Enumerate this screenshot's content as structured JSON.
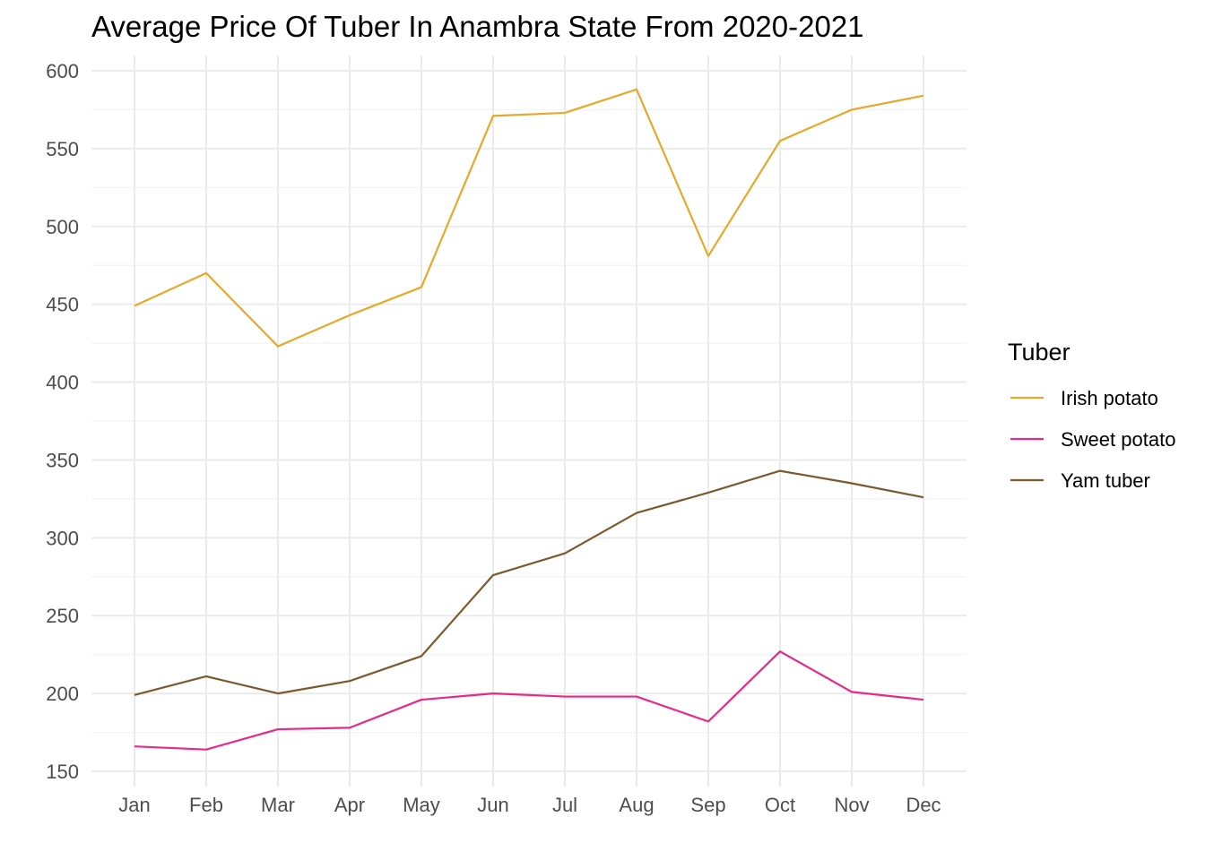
{
  "chart_data": {
    "type": "line",
    "title": "Average Price Of Tuber In Anambra State From 2020-2021",
    "xlabel": "",
    "ylabel": "",
    "categories": [
      "Jan",
      "Feb",
      "Mar",
      "Apr",
      "May",
      "Jun",
      "Jul",
      "Aug",
      "Sep",
      "Oct",
      "Nov",
      "Dec"
    ],
    "ylim": [
      150,
      600
    ],
    "yticks": [
      150,
      200,
      250,
      300,
      350,
      400,
      450,
      500,
      550,
      600
    ],
    "grid": true,
    "legend": {
      "title": "Tuber",
      "position": "right"
    },
    "series": [
      {
        "name": "Irish potato",
        "color": "#E6A92A",
        "values": [
          449,
          470,
          423,
          443,
          461,
          571,
          573,
          588,
          481,
          555,
          575,
          584
        ]
      },
      {
        "name": "Sweet potato",
        "color": "#E7298A",
        "values": [
          166,
          164,
          177,
          178,
          196,
          200,
          198,
          198,
          182,
          227,
          201,
          196
        ]
      },
      {
        "name": "Yam tuber",
        "color": "#7A5A2E",
        "values": [
          199,
          211,
          200,
          208,
          224,
          276,
          290,
          316,
          329,
          343,
          335,
          326
        ]
      }
    ]
  }
}
